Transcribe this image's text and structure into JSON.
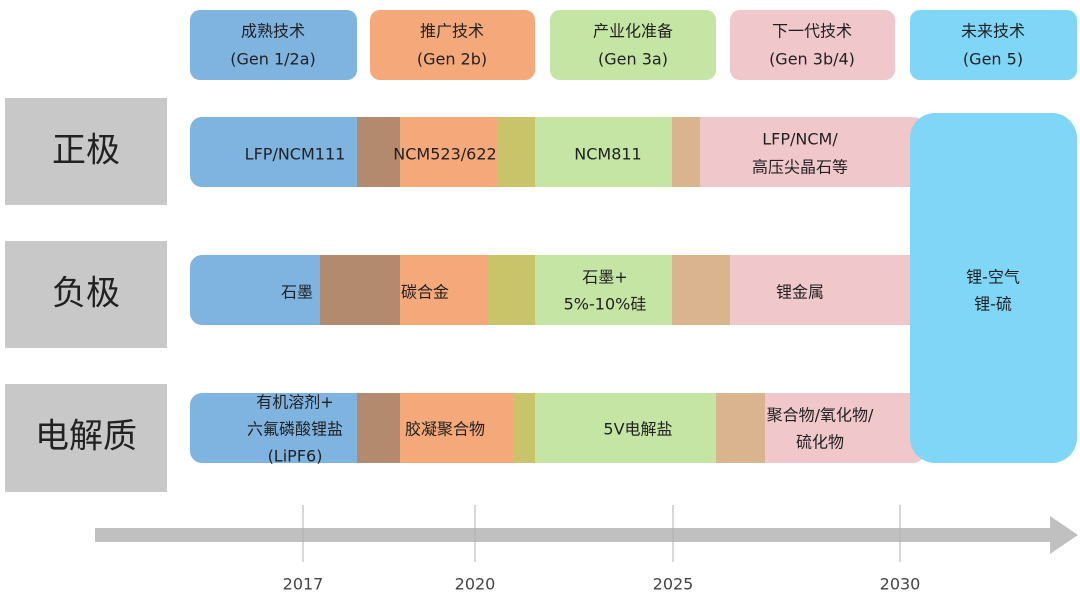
{
  "stages": [
    {
      "name": "成熟技术",
      "gen": "(Gen 1/2a)"
    },
    {
      "name": "推广技术",
      "gen": "(Gen 2b)"
    },
    {
      "name": "产业化准备",
      "gen": "(Gen 3a)"
    },
    {
      "name": "下一代技术",
      "gen": "(Gen 3b/4)"
    },
    {
      "name": "未来技术",
      "gen": "(Gen 5)"
    }
  ],
  "rows": [
    {
      "label": "正极",
      "items": [
        [
          "LFP/NCM111"
        ],
        [
          "NCM523/622"
        ],
        [
          "NCM811"
        ],
        [
          "LFP/NCM/",
          "高压尖晶石等"
        ]
      ]
    },
    {
      "label": "负极",
      "items": [
        [
          "石墨"
        ],
        [
          "碳合金"
        ],
        [
          "石墨+",
          "5%-10%硅"
        ],
        [
          "锂金属"
        ]
      ]
    },
    {
      "label": "电解质",
      "items": [
        [
          "有机溶剂+",
          "六氟磷酸锂盐",
          "(LiPF6)"
        ],
        [
          "胶凝聚合物"
        ],
        [
          "5V电解盐"
        ],
        [
          "聚合物/氧化物/",
          "硫化物"
        ]
      ]
    }
  ],
  "future": [
    "锂-空气",
    "锂-硫"
  ],
  "timeline": [
    "2017",
    "2020",
    "2025",
    "2030"
  ]
}
